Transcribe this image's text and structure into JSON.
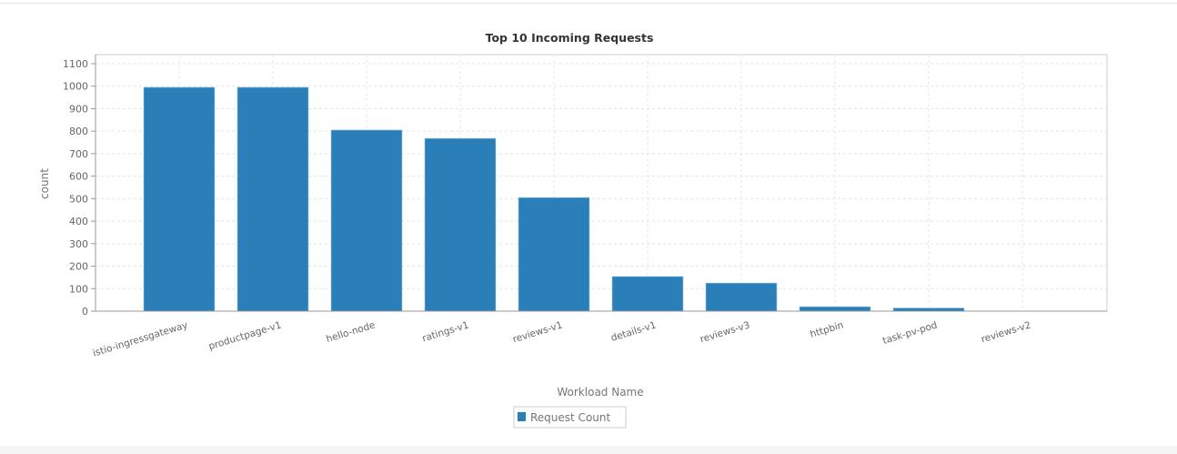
{
  "chart_data": {
    "type": "bar",
    "title": "Top 10 Incoming Requests",
    "xlabel": "Workload Name",
    "ylabel": "count",
    "ylim": [
      0,
      1100
    ],
    "yticks": [
      0,
      100,
      200,
      300,
      400,
      500,
      600,
      700,
      800,
      900,
      1000,
      1100
    ],
    "grid": true,
    "legend": "bottom-center",
    "categories": [
      "istio-ingressgateway",
      "productpage-v1",
      "hello-node",
      "ratings-v1",
      "reviews-v1",
      "details-v1",
      "reviews-v3",
      "httpbin",
      "task-pv-pod",
      "reviews-v2"
    ],
    "series": [
      {
        "name": "Request Count",
        "color": "#2a7fb8",
        "values": [
          995,
          995,
          805,
          768,
          505,
          154,
          125,
          20,
          14,
          0
        ]
      }
    ]
  }
}
